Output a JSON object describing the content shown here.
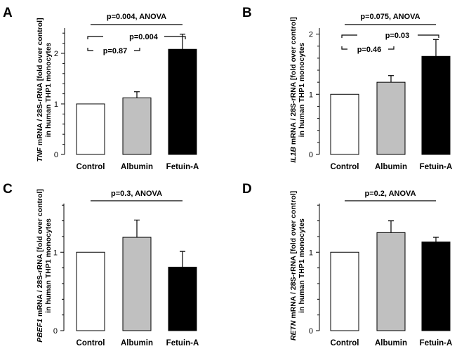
{
  "chart_data": [
    {
      "panel": "A",
      "type": "bar",
      "ylabel_gene": "TNF",
      "ylabel_rest": " mRNA / 28S-rRNA [fold over control]",
      "ylabel_line2": "in human THP1 monocytes",
      "categories": [
        "Control",
        "Albumin",
        "Fetuin-A"
      ],
      "values": [
        1.0,
        1.12,
        2.08
      ],
      "errors": [
        0.0,
        0.12,
        0.3
      ],
      "colors": [
        "#ffffff",
        "#c0c0c0",
        "#000000"
      ],
      "ylim": [
        0,
        2.5
      ],
      "yticks": [
        0,
        1,
        2
      ],
      "annotations": [
        {
          "text": "p=0.004, ANOVA",
          "from": 0,
          "to": 2,
          "kind": "line"
        },
        {
          "text": "p=0.004",
          "from": 0,
          "to": 2,
          "kind": "bracket"
        },
        {
          "text": "p=0.87",
          "from": 0,
          "to": 1,
          "kind": "bracket"
        }
      ]
    },
    {
      "panel": "B",
      "type": "bar",
      "ylabel_gene": "IL1B",
      "ylabel_rest": " mRNA / 28S-rRNA [fold over control]",
      "ylabel_line2": "in human THP1 monocytes",
      "categories": [
        "Control",
        "Albumin",
        "Fetuin-A"
      ],
      "values": [
        1.0,
        1.2,
        1.63
      ],
      "errors": [
        0.0,
        0.11,
        0.28
      ],
      "colors": [
        "#ffffff",
        "#c0c0c0",
        "#000000"
      ],
      "ylim": [
        0,
        2.1
      ],
      "yticks": [
        0,
        1,
        2
      ],
      "annotations": [
        {
          "text": "p=0.075, ANOVA",
          "from": 0,
          "to": 2,
          "kind": "line"
        },
        {
          "text": "p=0.03",
          "from": 0,
          "to": 2,
          "kind": "bracket"
        },
        {
          "text": "p=0.46",
          "from": 0,
          "to": 1,
          "kind": "bracket"
        }
      ]
    },
    {
      "panel": "C",
      "type": "bar",
      "ylabel_gene": "PBEF1",
      "ylabel_rest": " mRNA / 28S-rRNA [fold over control]",
      "ylabel_line2": "in human THP1 monocytes",
      "categories": [
        "Control",
        "Albumin",
        "Fetuin-A"
      ],
      "values": [
        1.0,
        1.19,
        0.81
      ],
      "errors": [
        0.0,
        0.22,
        0.2
      ],
      "colors": [
        "#ffffff",
        "#c0c0c0",
        "#000000"
      ],
      "ylim": [
        0,
        1.62
      ],
      "yticks": [
        0,
        1
      ],
      "annotations": [
        {
          "text": "p=0.3, ANOVA",
          "from": 0,
          "to": 2,
          "kind": "line"
        }
      ]
    },
    {
      "panel": "D",
      "type": "bar",
      "ylabel_gene": "RETN",
      "ylabel_rest": " mRNA / 28S-rRNA [fold over control]",
      "ylabel_line2": "in human THP1 monocytes",
      "categories": [
        "Control",
        "Albumin",
        "Fetuin-A"
      ],
      "values": [
        1.0,
        1.25,
        1.13
      ],
      "errors": [
        0.0,
        0.15,
        0.06
      ],
      "colors": [
        "#ffffff",
        "#c0c0c0",
        "#000000"
      ],
      "ylim": [
        0,
        1.62
      ],
      "yticks": [
        0,
        1
      ],
      "annotations": [
        {
          "text": "p=0.2, ANOVA",
          "from": 0,
          "to": 2,
          "kind": "line"
        }
      ]
    }
  ]
}
